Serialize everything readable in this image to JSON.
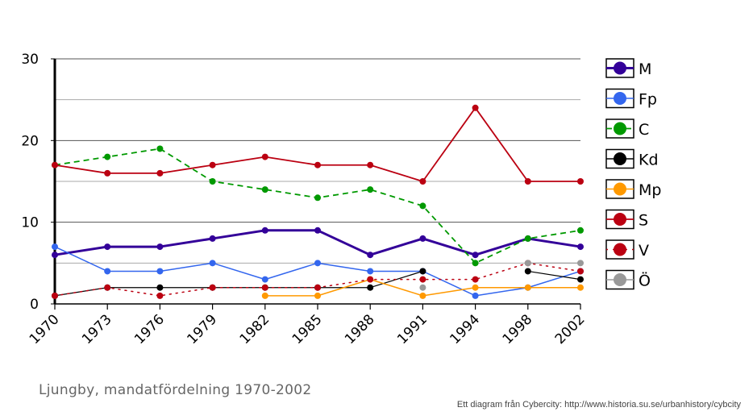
{
  "chart_data": {
    "type": "line",
    "title": "Ljungby, mandatfördelning 1970-2002",
    "source": "Ett diagram från Cybercity: http://www.historia.su.se/urbanhistory/cybcity",
    "x": [
      "1970",
      "1973",
      "1976",
      "1979",
      "1982",
      "1985",
      "1988",
      "1991",
      "1994",
      "1998",
      "2002"
    ],
    "ylim": [
      0,
      30
    ],
    "yticks": [
      0,
      10,
      20,
      30
    ],
    "grid": true,
    "legend_position": "right",
    "series": [
      {
        "name": "M",
        "color": "#330099",
        "style": "solid",
        "width": 3,
        "values": [
          6,
          7,
          7,
          8,
          9,
          9,
          6,
          8,
          6,
          8,
          7
        ]
      },
      {
        "name": "Fp",
        "color": "#3366ee",
        "style": "solid",
        "width": 1.5,
        "values": [
          7,
          4,
          4,
          5,
          3,
          5,
          4,
          4,
          1,
          2,
          4
        ]
      },
      {
        "name": "C",
        "color": "#009900",
        "style": "dashed",
        "width": 1.8,
        "values": [
          17,
          18,
          19,
          15,
          14,
          13,
          14,
          12,
          5,
          8,
          9
        ]
      },
      {
        "name": "Kd",
        "color": "#000000",
        "style": "solid",
        "width": 1.2,
        "values": [
          1,
          2,
          2,
          2,
          2,
          2,
          2,
          4,
          null,
          4,
          3
        ]
      },
      {
        "name": "Mp",
        "color": "#ff9900",
        "style": "solid",
        "width": 1.5,
        "values": [
          null,
          null,
          null,
          null,
          1,
          1,
          3,
          1,
          2,
          2,
          2
        ]
      },
      {
        "name": "S",
        "color": "#bb0011",
        "style": "solid",
        "width": 1.8,
        "values": [
          17,
          16,
          16,
          17,
          18,
          17,
          17,
          15,
          24,
          15,
          15
        ]
      },
      {
        "name": "V",
        "color": "#bb0011",
        "style": "dotted",
        "width": 1.5,
        "values": [
          1,
          2,
          1,
          2,
          2,
          2,
          3,
          3,
          3,
          5,
          4
        ]
      },
      {
        "name": "Ö",
        "color": "#999999",
        "style": "solid",
        "width": 1.2,
        "values": [
          null,
          null,
          null,
          null,
          null,
          null,
          null,
          2,
          null,
          5,
          5
        ]
      }
    ]
  }
}
